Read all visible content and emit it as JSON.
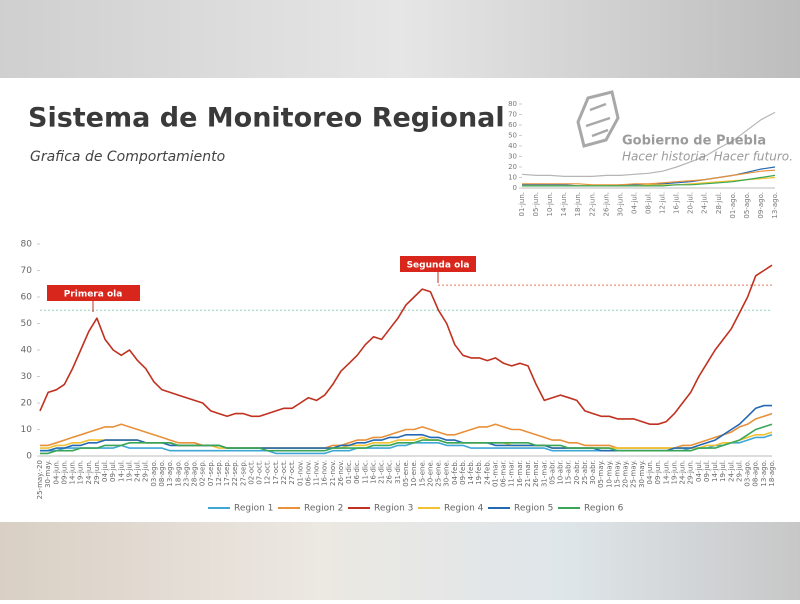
{
  "logo": {
    "title": "Gobierno de Puebla",
    "tagline": "Hacer historia. Hacer futuro."
  },
  "chart_data": [
    {
      "type": "line",
      "title": "Sistema de Monitoreo Regional",
      "subtitle": "Grafica de Comportamiento",
      "annotations": [
        "Primera ola",
        "Segunda ola"
      ],
      "reference_lines": [
        {
          "value": 64.5,
          "color": "#e07b5a"
        },
        {
          "value": 55,
          "color": "#8fd3c0"
        }
      ],
      "ylim": [
        0,
        80
      ],
      "yticks": [
        0,
        10,
        20,
        30,
        40,
        50,
        60,
        70,
        80
      ],
      "grid": false,
      "categories": [
        "25-may.-20",
        "30-may.",
        "04-jun.",
        "09-jun.",
        "14-jun.",
        "19-jun.",
        "24-jun.",
        "29-jun.",
        "04-jul.",
        "09-jul.",
        "14-jul.",
        "19-jul.",
        "24-jul.",
        "29-jul.",
        "03-ago.",
        "08-ago.",
        "13-ago.",
        "18-ago.",
        "23-ago.",
        "28-ago.",
        "02-sep.",
        "07-sep.",
        "12-sep.",
        "17-sep.",
        "22-sep.",
        "27-sep.",
        "02-oct.",
        "07-oct.",
        "12-oct.",
        "17-oct.",
        "22-oct.",
        "27-oct.",
        "01-nov.",
        "06-nov.",
        "11-nov.",
        "16-nov.",
        "21-nov.",
        "26-nov.",
        "01-dic.",
        "06-dic.",
        "11-dic.",
        "16-dic.",
        "21-dic.",
        "26-dic.",
        "31-dic.",
        "05-ene.",
        "10-ene.",
        "15-ene.",
        "20-ene.",
        "25-ene.",
        "30-ene.",
        "04-feb.",
        "09-feb.",
        "14-feb.",
        "19-feb.",
        "24-feb.",
        "01-mar.",
        "06-mar.",
        "11-mar.",
        "16-mar.",
        "21-mar.",
        "26-mar.",
        "31-mar.",
        "05-abr.",
        "10-abr.",
        "15-abr.",
        "20-abr.",
        "25-abr.",
        "30-abr.",
        "05-may.",
        "10-may.",
        "15-may.",
        "20-may.",
        "25-may.",
        "30-may.",
        "04-jun.",
        "09-jun.",
        "14-jun.",
        "19-jun.",
        "24-jun.",
        "29-jun.",
        "04-jul.",
        "09-jul.",
        "14-jul.",
        "19-jul.",
        "24-jul.",
        "29-jul.",
        "03-ago.",
        "08-ago.",
        "13-ago.",
        "18-ago."
      ],
      "series": [
        {
          "name": "Region 1",
          "color": "#3fa7d6",
          "values": [
            2,
            2,
            2,
            3,
            3,
            3,
            3,
            3,
            3,
            3,
            4,
            3,
            3,
            3,
            3,
            3,
            2,
            2,
            2,
            2,
            2,
            2,
            2,
            2,
            2,
            2,
            2,
            2,
            2,
            1,
            1,
            1,
            1,
            1,
            1,
            1,
            2,
            2,
            2,
            3,
            3,
            3,
            3,
            3,
            4,
            4,
            5,
            5,
            5,
            5,
            4,
            4,
            4,
            3,
            3,
            3,
            3,
            3,
            3,
            3,
            3,
            3,
            3,
            2,
            2,
            2,
            2,
            2,
            2,
            2,
            2,
            2,
            2,
            2,
            2,
            2,
            2,
            2,
            2,
            2,
            3,
            3,
            3,
            4,
            4,
            5,
            5,
            6,
            7,
            7,
            8
          ]
        },
        {
          "name": "Region 2",
          "color": "#e8913a",
          "values": [
            4,
            4,
            5,
            6,
            7,
            8,
            9,
            10,
            11,
            11,
            12,
            11,
            10,
            9,
            8,
            7,
            6,
            5,
            5,
            5,
            4,
            4,
            4,
            3,
            3,
            3,
            3,
            3,
            3,
            3,
            3,
            3,
            3,
            3,
            3,
            3,
            4,
            4,
            5,
            6,
            6,
            7,
            7,
            8,
            9,
            10,
            10,
            11,
            10,
            9,
            8,
            8,
            9,
            10,
            11,
            11,
            12,
            11,
            10,
            10,
            9,
            8,
            7,
            6,
            6,
            5,
            5,
            4,
            4,
            4,
            4,
            3,
            3,
            3,
            3,
            3,
            3,
            3,
            3,
            4,
            4,
            5,
            6,
            7,
            8,
            9,
            11,
            12,
            14,
            15,
            16
          ]
        },
        {
          "name": "Region 3",
          "color": "#c0311f",
          "values": [
            17,
            24,
            25,
            27,
            33,
            40,
            47,
            52,
            44,
            40,
            38,
            40,
            36,
            33,
            28,
            25,
            24,
            23,
            22,
            21,
            20,
            17,
            16,
            15,
            16,
            16,
            15,
            15,
            16,
            17,
            18,
            18,
            20,
            22,
            21,
            23,
            27,
            32,
            35,
            38,
            42,
            45,
            44,
            48,
            52,
            57,
            60,
            63,
            62,
            55,
            50,
            42,
            38,
            37,
            37,
            36,
            37,
            35,
            34,
            35,
            34,
            27,
            21,
            22,
            23,
            22,
            21,
            17,
            16,
            15,
            15,
            14,
            14,
            14,
            13,
            12,
            12,
            13,
            16,
            20,
            24,
            30,
            35,
            40,
            44,
            48,
            54,
            60,
            68,
            70,
            72
          ]
        },
        {
          "name": "Region 4",
          "color": "#f2c12e",
          "values": [
            3,
            3,
            4,
            4,
            5,
            5,
            6,
            6,
            6,
            6,
            6,
            6,
            6,
            5,
            5,
            5,
            5,
            4,
            4,
            4,
            4,
            4,
            3,
            3,
            3,
            3,
            3,
            3,
            3,
            3,
            3,
            3,
            3,
            3,
            3,
            3,
            3,
            3,
            4,
            4,
            4,
            5,
            5,
            5,
            6,
            6,
            6,
            7,
            6,
            6,
            5,
            5,
            5,
            5,
            5,
            5,
            5,
            5,
            4,
            4,
            4,
            4,
            4,
            3,
            3,
            3,
            3,
            3,
            3,
            3,
            3,
            3,
            3,
            3,
            3,
            3,
            3,
            3,
            3,
            3,
            3,
            3,
            4,
            4,
            5,
            5,
            6,
            7,
            8,
            8,
            9
          ]
        },
        {
          "name": "Region 5",
          "color": "#2469b3",
          "values": [
            2,
            2,
            3,
            3,
            4,
            4,
            5,
            5,
            6,
            6,
            6,
            6,
            6,
            5,
            5,
            5,
            4,
            4,
            4,
            4,
            4,
            4,
            4,
            3,
            3,
            3,
            3,
            3,
            3,
            3,
            3,
            3,
            3,
            3,
            3,
            3,
            3,
            4,
            4,
            5,
            5,
            6,
            6,
            7,
            7,
            8,
            8,
            8,
            7,
            7,
            6,
            6,
            5,
            5,
            5,
            5,
            4,
            4,
            4,
            4,
            4,
            4,
            4,
            3,
            3,
            3,
            3,
            3,
            3,
            2,
            2,
            2,
            2,
            2,
            2,
            2,
            2,
            2,
            3,
            3,
            3,
            4,
            5,
            6,
            8,
            10,
            12,
            15,
            18,
            19,
            19
          ]
        },
        {
          "name": "Region 6",
          "color": "#3aa655",
          "values": [
            1,
            1,
            2,
            2,
            2,
            3,
            3,
            3,
            4,
            4,
            4,
            5,
            5,
            5,
            5,
            5,
            5,
            4,
            4,
            4,
            4,
            4,
            4,
            3,
            3,
            3,
            3,
            3,
            2,
            2,
            2,
            2,
            2,
            2,
            2,
            2,
            3,
            3,
            3,
            3,
            3,
            4,
            4,
            4,
            5,
            5,
            5,
            6,
            6,
            6,
            5,
            5,
            5,
            5,
            5,
            5,
            5,
            5,
            5,
            5,
            5,
            4,
            4,
            4,
            4,
            3,
            3,
            3,
            3,
            3,
            3,
            2,
            2,
            2,
            2,
            2,
            2,
            2,
            2,
            2,
            2,
            3,
            3,
            3,
            4,
            5,
            6,
            8,
            10,
            11,
            12
          ]
        }
      ]
    },
    {
      "type": "line",
      "ylim": [
        0,
        80
      ],
      "yticks": [
        0,
        10,
        20,
        30,
        40,
        50,
        60,
        70,
        80
      ],
      "categories": [
        "01-jun.",
        "05-jun.",
        "10-jun.",
        "14-jun.",
        "18-jun.",
        "22-jun.",
        "26-jun.",
        "30-jun.",
        "04-jul.",
        "08-jul.",
        "12-jul.",
        "16-jul.",
        "20-jul.",
        "24-jul.",
        "28-jul.",
        "01-ago.",
        "05-ago.",
        "09-ago.",
        "13-ago."
      ],
      "series": [
        {
          "color": "#b5b5b5",
          "values": [
            13,
            12,
            12,
            11,
            11,
            11,
            12,
            12,
            13,
            14,
            16,
            20,
            25,
            30,
            38,
            45,
            55,
            65,
            72
          ]
        },
        {
          "color": "#2469b3",
          "values": [
            3,
            3,
            3,
            3,
            2,
            2,
            2,
            3,
            3,
            3,
            4,
            5,
            6,
            8,
            10,
            12,
            15,
            18,
            20
          ]
        },
        {
          "color": "#e8913a",
          "values": [
            4,
            4,
            4,
            4,
            4,
            3,
            3,
            3,
            4,
            4,
            5,
            6,
            7,
            8,
            10,
            12,
            14,
            16,
            17
          ]
        },
        {
          "color": "#f2c12e",
          "values": [
            2,
            2,
            2,
            2,
            2,
            2,
            2,
            2,
            2,
            3,
            3,
            3,
            4,
            5,
            6,
            7,
            8,
            9,
            10
          ]
        },
        {
          "color": "#3aa655",
          "values": [
            2,
            2,
            2,
            2,
            2,
            2,
            2,
            2,
            2,
            2,
            2,
            3,
            3,
            4,
            5,
            6,
            8,
            10,
            12
          ]
        }
      ]
    }
  ]
}
